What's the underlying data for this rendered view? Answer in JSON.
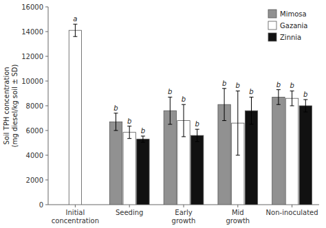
{
  "chart_data": {
    "type": "bar",
    "categories": [
      "Initial\nconcentration",
      "Seeding",
      "Early\ngrowth",
      "Mid\ngrowth",
      "Non-inoculated"
    ],
    "series": [
      {
        "name": "Mimosa",
        "color": "#919191",
        "values": [
          null,
          6700,
          7600,
          8100,
          8700
        ],
        "errors": [
          null,
          700,
          1100,
          1300,
          600
        ],
        "significance": [
          null,
          "b",
          "b",
          "b",
          "b"
        ]
      },
      {
        "name": "Gazania",
        "color": "#ffffff",
        "values": [
          14100,
          5850,
          6800,
          6600,
          8600
        ],
        "errors": [
          500,
          500,
          1300,
          2600,
          600
        ],
        "significance": [
          "a",
          "b",
          "b",
          "b",
          "b"
        ]
      },
      {
        "name": "Zinnia",
        "color": "#111111",
        "values": [
          null,
          5300,
          5600,
          7600,
          8000
        ],
        "errors": [
          null,
          250,
          500,
          1100,
          500
        ],
        "significance": [
          null,
          "b",
          "b",
          "b",
          "b"
        ]
      }
    ],
    "ylabel": "Soil TPH concentration\n(mg diesel/kg soil ± SD)",
    "ylim": [
      0,
      16000
    ],
    "yticks": [
      0,
      2000,
      4000,
      6000,
      8000,
      10000,
      12000,
      14000,
      16000
    ],
    "grid": false,
    "legend": "upper right"
  }
}
